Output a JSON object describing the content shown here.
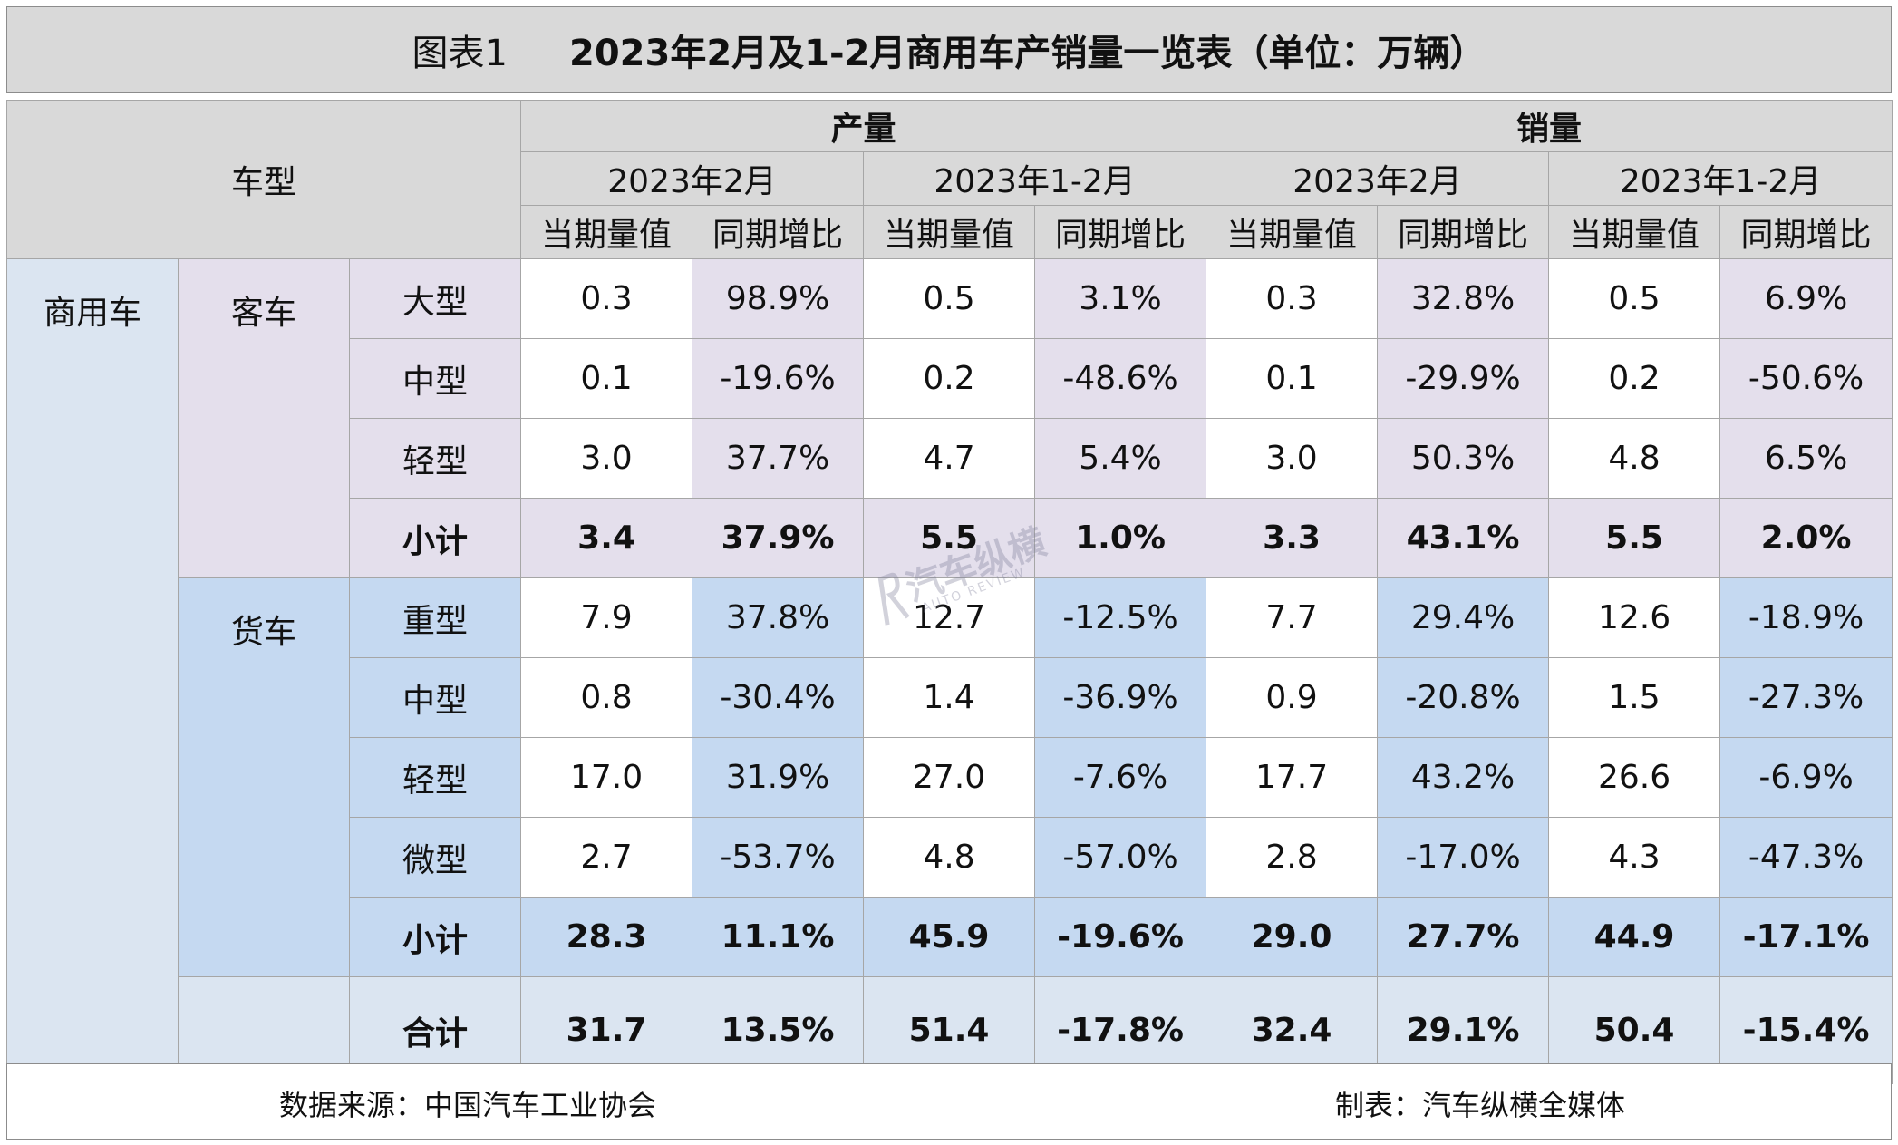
{
  "title": {
    "label": "图表1",
    "text": "2023年2月及1-2月商用车产销量一览表（单位：万辆）"
  },
  "header": {
    "vehicle_type": "车型",
    "production": "产量",
    "sales": "销量",
    "period_feb": "2023年2月",
    "period_ytd": "2023年1-2月",
    "current_value": "当期量值",
    "yoy": "同期增比"
  },
  "categories": {
    "commercial": "商用车",
    "bus": "客车",
    "truck": "货车"
  },
  "rows": [
    {
      "label": "大型",
      "values": [
        "0.3",
        "98.9%",
        "0.5",
        "3.1%",
        "0.3",
        "32.8%",
        "0.5",
        "6.9%"
      ]
    },
    {
      "label": "中型",
      "values": [
        "0.1",
        "-19.6%",
        "0.2",
        "-48.6%",
        "0.1",
        "-29.9%",
        "0.2",
        "-50.6%"
      ]
    },
    {
      "label": "轻型",
      "values": [
        "3.0",
        "37.7%",
        "4.7",
        "5.4%",
        "3.0",
        "50.3%",
        "4.8",
        "6.5%"
      ]
    },
    {
      "label": "小计",
      "values": [
        "3.4",
        "37.9%",
        "5.5",
        "1.0%",
        "3.3",
        "43.1%",
        "5.5",
        "2.0%"
      ]
    },
    {
      "label": "重型",
      "values": [
        "7.9",
        "37.8%",
        "12.7",
        "-12.5%",
        "7.7",
        "29.4%",
        "12.6",
        "-18.9%"
      ]
    },
    {
      "label": "中型",
      "values": [
        "0.8",
        "-30.4%",
        "1.4",
        "-36.9%",
        "0.9",
        "-20.8%",
        "1.5",
        "-27.3%"
      ]
    },
    {
      "label": "轻型",
      "values": [
        "17.0",
        "31.9%",
        "27.0",
        "-7.6%",
        "17.7",
        "43.2%",
        "26.6",
        "-6.9%"
      ]
    },
    {
      "label": "微型",
      "values": [
        "2.7",
        "-53.7%",
        "4.8",
        "-57.0%",
        "2.8",
        "-17.0%",
        "4.3",
        "-47.3%"
      ]
    },
    {
      "label": "小计",
      "values": [
        "28.3",
        "11.1%",
        "45.9",
        "-19.6%",
        "29.0",
        "27.7%",
        "44.9",
        "-17.1%"
      ]
    },
    {
      "label": "合计",
      "values": [
        "31.7",
        "13.5%",
        "51.4",
        "-17.8%",
        "32.4",
        "29.1%",
        "50.4",
        "-15.4%"
      ]
    }
  ],
  "footer": {
    "source": "数据来源：中国汽车工业协会",
    "maker": "制表：汽车纵横全媒体"
  },
  "watermark": {
    "main": "汽车纵横",
    "sub": "AUTO REVIEW"
  },
  "colors": {
    "header_gray": "#d9d9d9",
    "bus_lavender": "#e4dfec",
    "truck_blue": "#c5d9f1",
    "commercial_light_blue": "#dbe5f1"
  }
}
